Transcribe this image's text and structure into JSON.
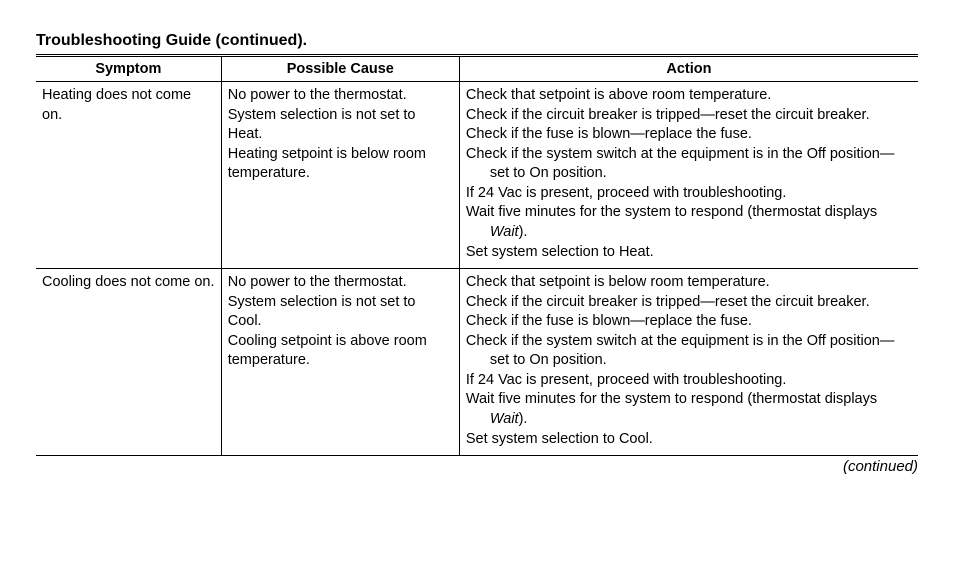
{
  "title": "Troubleshooting Guide (continued).",
  "continued_label": "(continued)",
  "columns": {
    "symptom": "Symptom",
    "cause": "Possible Cause",
    "action": "Action"
  },
  "rows": [
    {
      "symptom": "Heating does not come on.",
      "causes": [
        "No power to the thermostat.",
        "System selection is not set to Heat.",
        "Heating setpoint is below room temperature."
      ],
      "actions": [
        {
          "text": "Check that setpoint is above room temperature."
        },
        {
          "text": "Check if the circuit breaker is tripped—reset the circuit breaker.",
          "wrap": true
        },
        {
          "text": "Check if the fuse is blown—replace the fuse."
        },
        {
          "text": "Check if the system switch at the equipment is in the Off position—set to On position.",
          "wrap": true
        },
        {
          "text": "If 24 Vac is present, proceed with troubleshooting."
        },
        {
          "text_parts": [
            "Wait five minutes for the system to respond (thermostat displays ",
            {
              "italic": "Wait"
            },
            ")."
          ],
          "wrap": true
        },
        {
          "text": "Set system selection to Heat."
        }
      ]
    },
    {
      "symptom": "Cooling does not come on.",
      "causes": [
        "No power to the thermostat.",
        "System selection is not set to Cool.",
        "Cooling setpoint is above room temperature."
      ],
      "actions": [
        {
          "text": "Check that setpoint is below room temperature."
        },
        {
          "text": "Check if the circuit breaker is tripped—reset the circuit breaker.",
          "wrap": true
        },
        {
          "text": "Check if the fuse is blown—replace the fuse."
        },
        {
          "text": "Check if the system switch at the equipment is in the Off position—set to On position.",
          "wrap": true
        },
        {
          "text": "If 24 Vac is present, proceed with troubleshooting."
        },
        {
          "text_parts": [
            "Wait five minutes for the system to respond (thermostat displays ",
            {
              "italic": "Wait"
            },
            ")."
          ],
          "wrap": true
        },
        {
          "text": "Set system selection to Cool."
        }
      ]
    }
  ]
}
